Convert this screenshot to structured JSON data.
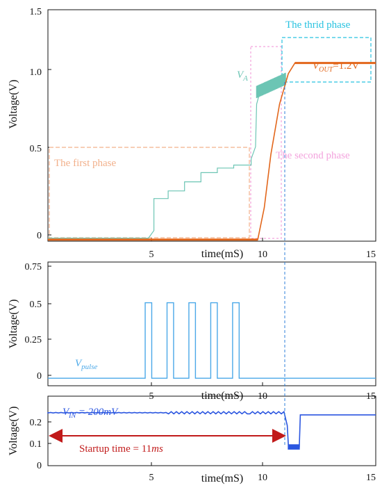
{
  "colors": {
    "vout": "#e2661b",
    "va": "#6cc5b4",
    "vpulse": "#4aa8e8",
    "vin": "#2b56e0",
    "phase1": "#f2b08b",
    "phase2": "#f3a3dd",
    "phase3": "#27c2e0",
    "marker": "#2e7fd8",
    "startup": "#c11a1a"
  },
  "chart_data": [
    {
      "type": "line",
      "ylabel": "Voltage(V)",
      "xlabel": "time(mS)",
      "xlim": [
        0,
        15
      ],
      "ylim": [
        -0.02,
        1.5
      ],
      "xticks": [
        "5",
        "10",
        "15"
      ],
      "yticks": [
        "0",
        "0.5",
        "1.0",
        "1.5"
      ],
      "series": [
        {
          "name": "V_A",
          "x": [
            0,
            4.6,
            4.85,
            4.85,
            5.5,
            5.5,
            6.25,
            6.25,
            7.0,
            7.0,
            7.75,
            7.75,
            8.5,
            8.5,
            9.3,
            9.3,
            9.5,
            9.55,
            9.7,
            10.2,
            10.6,
            10.9
          ],
          "y": [
            0,
            0,
            0.05,
            0.26,
            0.26,
            0.31,
            0.31,
            0.37,
            0.37,
            0.43,
            0.43,
            0.46,
            0.46,
            0.48,
            0.48,
            0.52,
            0.6,
            0.88,
            0.96,
            0.98,
            1.02,
            1.05
          ]
        },
        {
          "name": "V_OUT",
          "x": [
            0,
            9.2,
            9.6,
            9.9,
            10.2,
            10.6,
            11.0,
            11.3,
            11.6,
            12.0,
            15
          ],
          "y": [
            -0.01,
            -0.01,
            -0.01,
            0.2,
            0.55,
            0.88,
            1.08,
            1.15,
            1.15,
            1.15,
            1.15
          ]
        }
      ],
      "annotations": {
        "phase1": "The first phase",
        "phase2": "The second phase",
        "phase3": "The thrid phase",
        "va_label": "V",
        "va_sub": "A",
        "vout_label": "V",
        "vout_sub": "OUT",
        "vout_value": "=1.2V"
      }
    },
    {
      "type": "line",
      "ylabel": "Voltage(V)",
      "xlabel": "time(mS)",
      "xlim": [
        0,
        15
      ],
      "ylim": [
        -0.05,
        0.77
      ],
      "xticks": [
        "5",
        "10",
        "15"
      ],
      "yticks": [
        "0",
        "0.25",
        "0.5",
        "0.75"
      ],
      "series": [
        {
          "name": "V_pulse",
          "pulses": [
            [
              4.45,
              4.75
            ],
            [
              5.45,
              5.75
            ],
            [
              6.45,
              6.75
            ],
            [
              7.45,
              7.75
            ],
            [
              8.45,
              8.75
            ]
          ],
          "high": 0.5,
          "low": 0
        }
      ],
      "annotations": {
        "vpulse_label": "V",
        "vpulse_sub": "pulse"
      }
    },
    {
      "type": "line",
      "ylabel": "Voltage(V)",
      "xlabel": "time(mS)",
      "xlim": [
        0,
        15
      ],
      "ylim": [
        0,
        0.26
      ],
      "xticks": [
        "5",
        "10",
        "15"
      ],
      "yticks": [
        "0",
        "0.1",
        "0.2"
      ],
      "series": [
        {
          "name": "V_IN",
          "x": [
            0,
            10.8,
            10.95,
            11.0,
            11.05,
            11.5,
            11.55,
            11.6,
            15
          ],
          "y": [
            0.2,
            0.196,
            0.15,
            0.08,
            0.07,
            0.07,
            0.19,
            0.19,
            0.19
          ]
        }
      ],
      "annotations": {
        "vin_text": "V",
        "vin_sub": "IN",
        "vin_value": " = 200mV",
        "startup_text": "Startup time = 11",
        "startup_unit": "ms"
      }
    }
  ]
}
